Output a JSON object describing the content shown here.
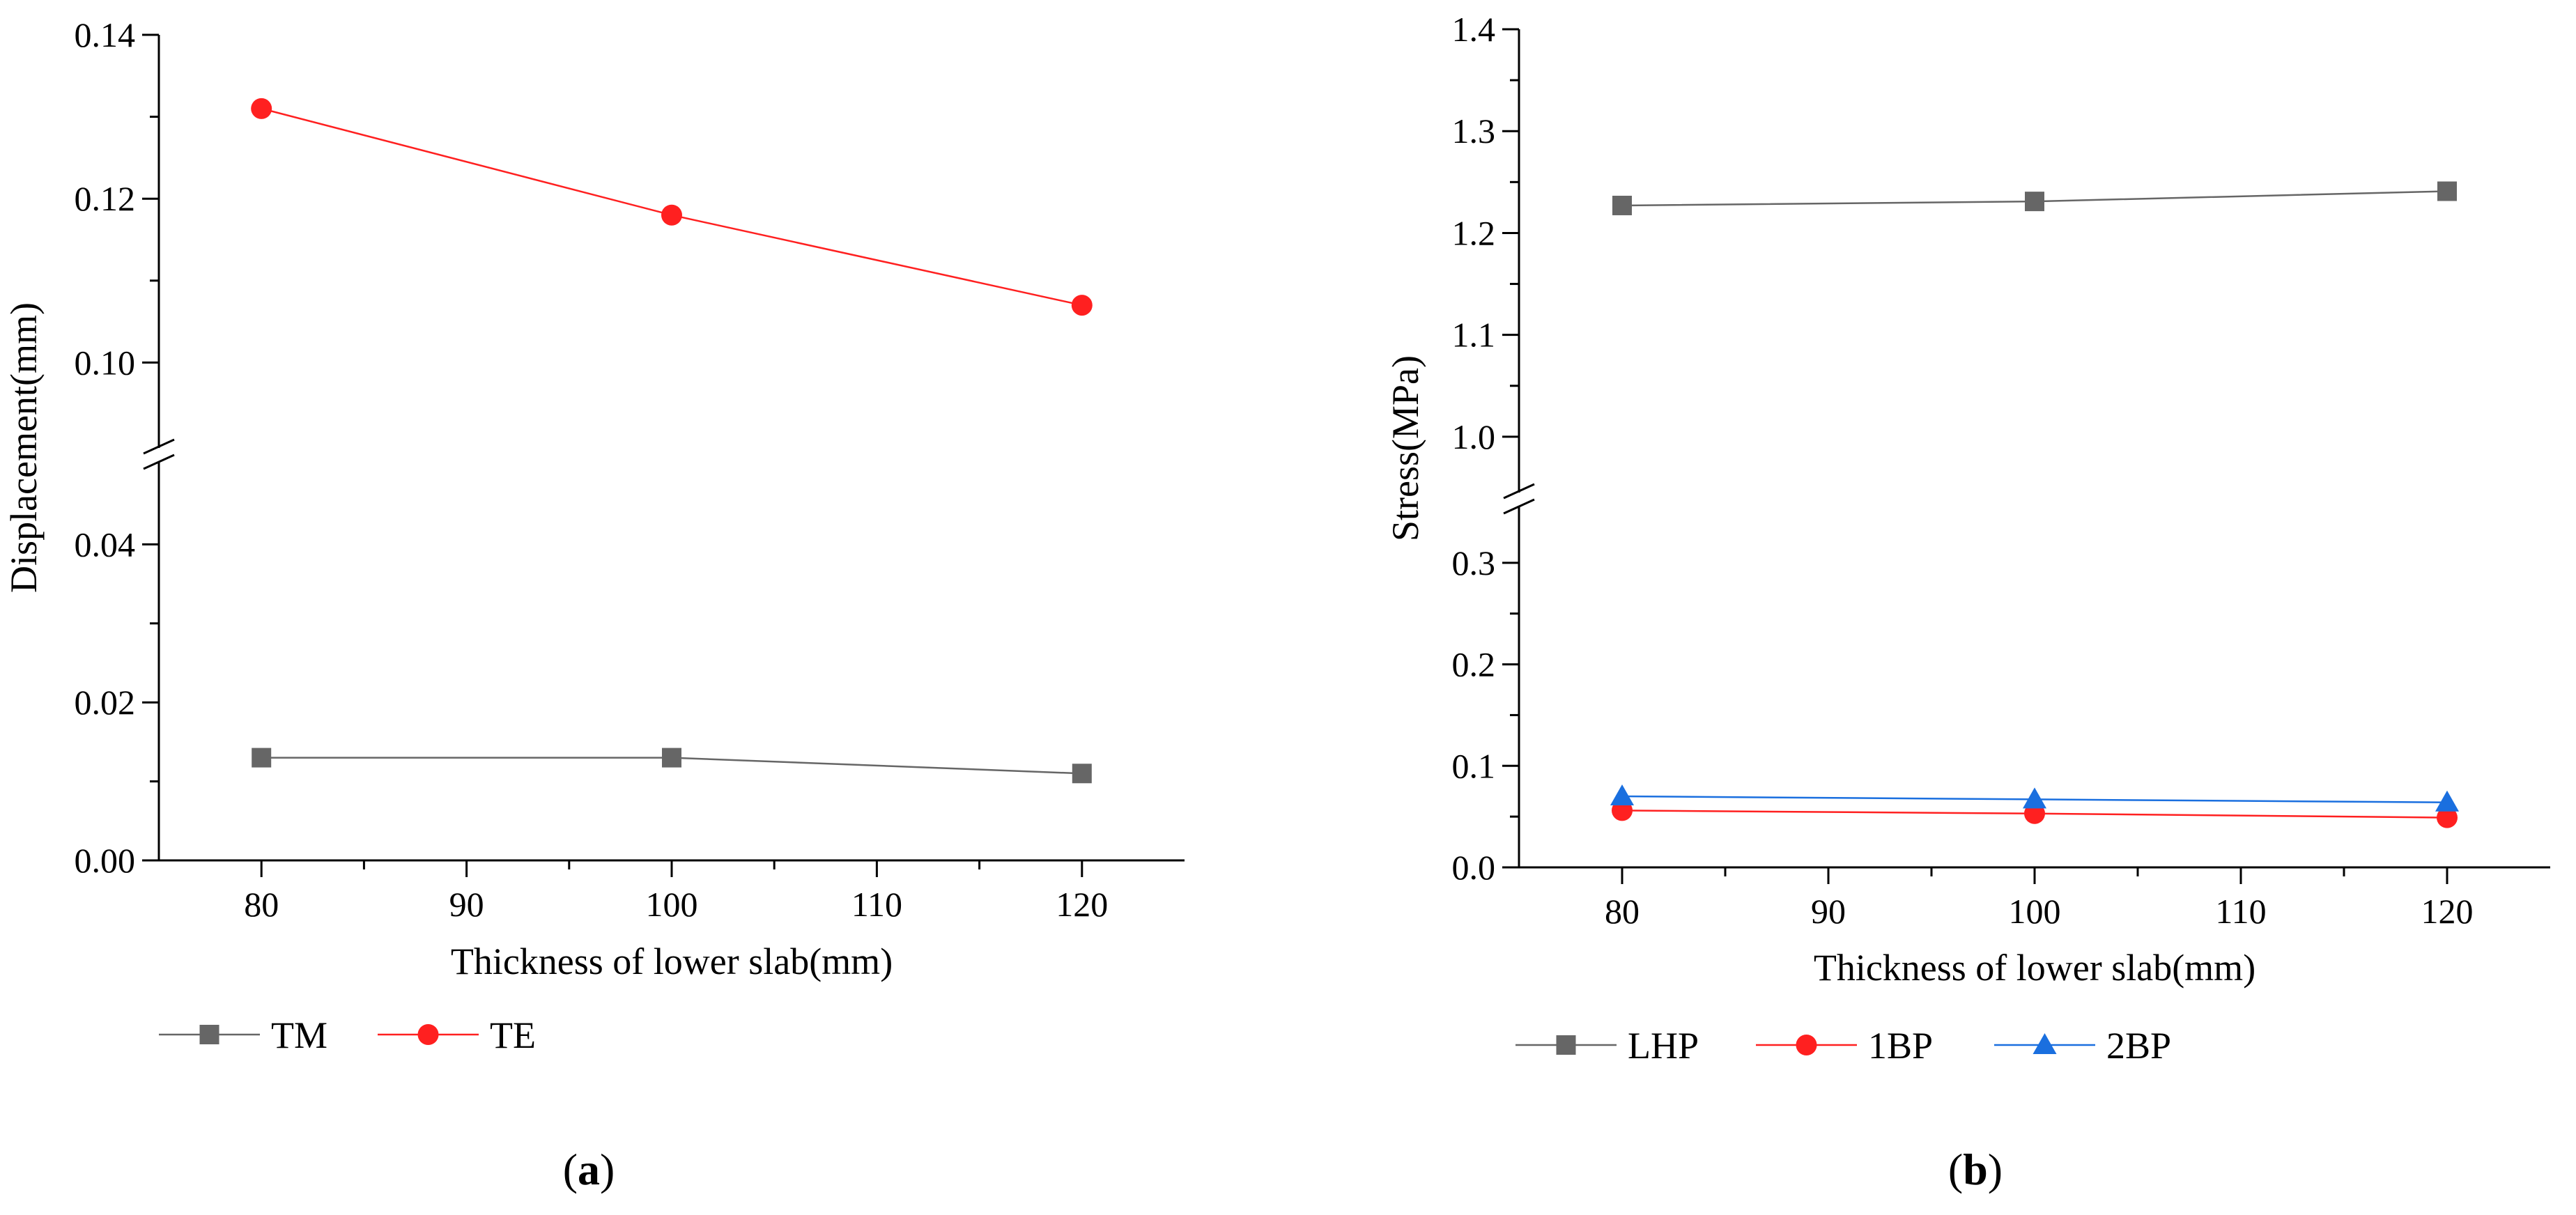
{
  "chart_data": [
    {
      "type": "line",
      "panel_label": {
        "open": "(",
        "letter": "a",
        "close": ")"
      },
      "xlabel": "Thickness of lower slab(mm)",
      "ylabel": "Displacement(mm)",
      "xlim": [
        75,
        125
      ],
      "x_ticks": [
        80,
        90,
        100,
        110,
        120
      ],
      "y_axis_break": true,
      "y_lower_segment": {
        "range": [
          0.0,
          0.05
        ],
        "ticks": [
          "0.00",
          "0.02",
          "0.04"
        ]
      },
      "y_upper_segment": {
        "range": [
          0.09,
          0.14
        ],
        "ticks": [
          "0.10",
          "0.12",
          "0.14"
        ]
      },
      "x": [
        80,
        100,
        120
      ],
      "series": [
        {
          "name": "TM",
          "values": [
            0.013,
            0.013,
            0.011
          ],
          "color": "#666666",
          "marker": "square"
        },
        {
          "name": "TE",
          "values": [
            0.131,
            0.118,
            0.107
          ],
          "color": "#ff2020",
          "marker": "circle"
        }
      ],
      "legend": "bottom"
    },
    {
      "type": "line",
      "panel_label": {
        "open": "(",
        "letter": "b",
        "close": ")"
      },
      "xlabel": "Thickness of lower slab(mm)",
      "ylabel": "Stress(MPa)",
      "xlim": [
        75,
        125
      ],
      "x_ticks": [
        80,
        90,
        100,
        110,
        120
      ],
      "y_axis_break": true,
      "y_lower_segment": {
        "range": [
          0.0,
          0.35
        ],
        "ticks": [
          "0.0",
          "0.1",
          "0.2",
          "0.3"
        ]
      },
      "y_upper_segment": {
        "range": [
          0.95,
          1.4
        ],
        "ticks": [
          "1.0",
          "1.1",
          "1.2",
          "1.3",
          "1.4"
        ]
      },
      "x": [
        80,
        100,
        120
      ],
      "series": [
        {
          "name": "LHP",
          "values": [
            1.227,
            1.231,
            1.241
          ],
          "color": "#666666",
          "marker": "square"
        },
        {
          "name": "1BP",
          "values": [
            0.056,
            0.053,
            0.049
          ],
          "color": "#ff2020",
          "marker": "circle"
        },
        {
          "name": "2BP",
          "values": [
            0.07,
            0.067,
            0.064
          ],
          "color": "#1a6fdf",
          "marker": "triangle"
        }
      ],
      "legend": "bottom"
    }
  ]
}
